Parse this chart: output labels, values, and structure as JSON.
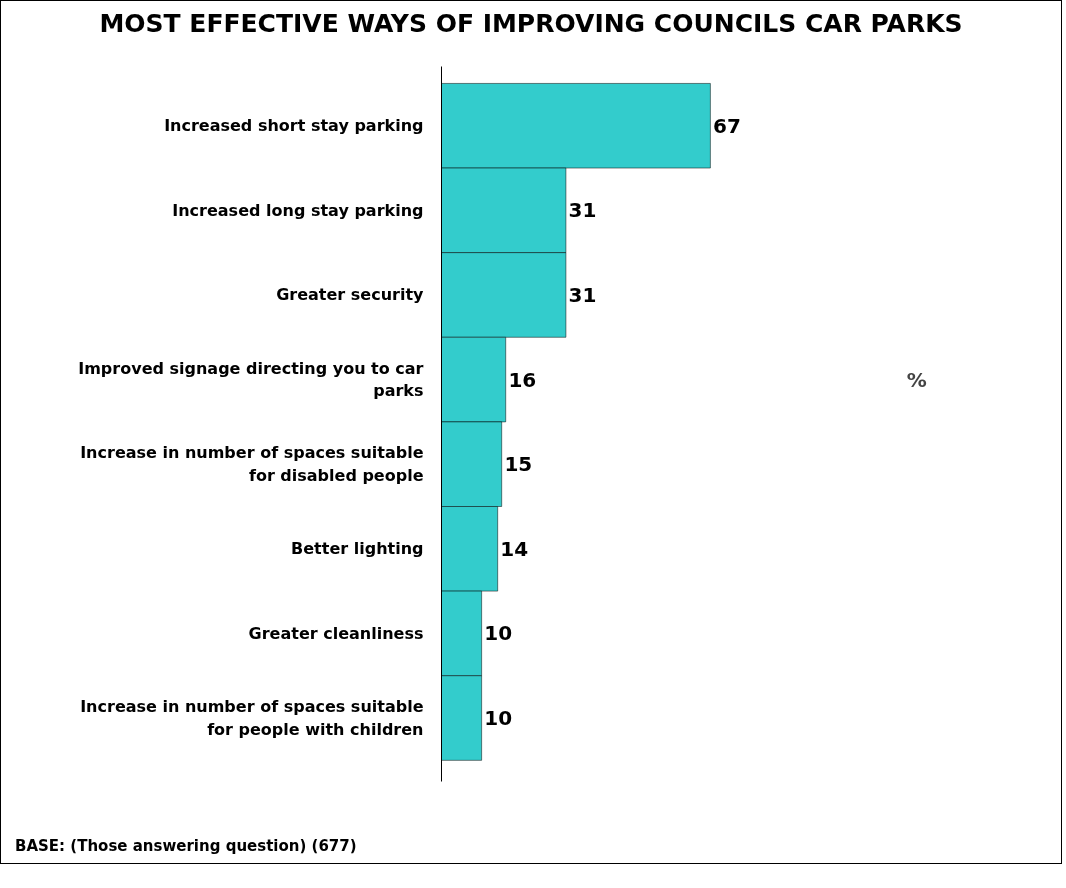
{
  "chart_data": {
    "type": "bar",
    "orientation": "horizontal",
    "title": "MOST EFFECTIVE WAYS OF IMPROVING COUNCILS CAR PARKS",
    "categories": [
      "Increased short stay parking",
      "Increased long stay parking",
      "Greater security",
      "Improved signage directing you to car parks",
      "Increase in number of spaces suitable for disabled people",
      "Better lighting",
      "Greater cleanliness",
      "Increase in number of spaces suitable for people with children"
    ],
    "values": [
      67,
      31,
      31,
      16,
      15,
      14,
      10,
      10
    ],
    "color": "#33cccc",
    "tick_labels": "y",
    "data_labels": true,
    "grid": false,
    "annotations": [
      "%",
      "BASE: (Those answering question) (677)"
    ]
  }
}
